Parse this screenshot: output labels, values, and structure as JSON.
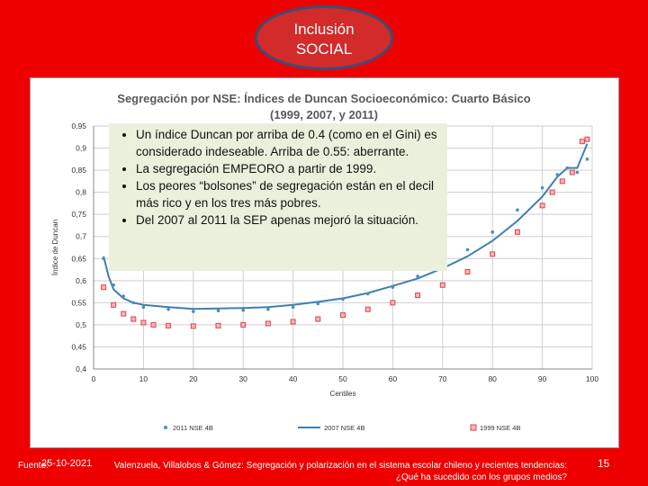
{
  "slide": {
    "badge_line1": "Inclusión",
    "badge_line2": "SOCIAL",
    "date": "25-10-2021",
    "source_prefix": "Fuente:",
    "source_line1": "Valenzuela, Villalobos & Gómez: Segregación y polarización en el sistema escolar chileno y recientes tendencias:",
    "source_line2": "¿Qué ha sucedido con los grupos medios?",
    "page_number": "15",
    "bullets": [
      "Un índice Duncan por arriba de 0.4 (como en el Gini) es considerado indeseable. Arriba de 0.55: aberrante.",
      "La segregación EMPEORO a partir de 1999.",
      "Los peores “bolsones” de segregación están en el decil más rico y en los tres más pobres.",
      "Del 2007 al 2011 la SEP apenas mejoró la situación."
    ]
  },
  "chart_data": {
    "type": "scatter",
    "title_line1": "Segregación por NSE: Índices de Duncan Socioeconómico: Cuarto Básico",
    "title_line2": "(1999, 2007, y 2011)",
    "xlabel": "Centiles",
    "ylabel": "Índice de Duncan",
    "xlim": [
      0,
      100
    ],
    "ylim": [
      0.4,
      0.95
    ],
    "xticks": [
      "0",
      "10",
      "20",
      "30",
      "40",
      "50",
      "60",
      "70",
      "80",
      "90",
      "100"
    ],
    "yticks": [
      "0,4",
      "0,45",
      "0,5",
      "0,55",
      "0,6",
      "0,65",
      "0,7",
      "0,75",
      "0,8",
      "0,85",
      "0,9",
      "0,95"
    ],
    "grid": true,
    "legend_position": "bottom",
    "series": [
      {
        "name": "2011 NSE 4B",
        "style": "dot",
        "color": "#4a8fb8",
        "x": [
          2,
          4,
          6,
          8,
          10,
          15,
          20,
          25,
          30,
          35,
          40,
          45,
          50,
          55,
          60,
          65,
          70,
          75,
          80,
          85,
          90,
          93,
          95,
          97,
          99
        ],
        "y": [
          0.65,
          0.59,
          0.565,
          0.55,
          0.54,
          0.535,
          0.53,
          0.532,
          0.533,
          0.535,
          0.54,
          0.548,
          0.558,
          0.57,
          0.585,
          0.61,
          0.635,
          0.67,
          0.71,
          0.76,
          0.81,
          0.84,
          0.855,
          0.845,
          0.875
        ]
      },
      {
        "name": "2007 NSE 4B",
        "style": "line",
        "color": "#3f7fae",
        "x": [
          2,
          3,
          4,
          6,
          8,
          10,
          15,
          20,
          25,
          30,
          35,
          40,
          45,
          50,
          55,
          60,
          65,
          70,
          75,
          80,
          85,
          90,
          93,
          95,
          97,
          99
        ],
        "y": [
          0.655,
          0.61,
          0.58,
          0.56,
          0.55,
          0.545,
          0.54,
          0.536,
          0.537,
          0.538,
          0.54,
          0.545,
          0.552,
          0.56,
          0.572,
          0.588,
          0.605,
          0.628,
          0.655,
          0.69,
          0.735,
          0.79,
          0.835,
          0.855,
          0.855,
          0.91
        ]
      },
      {
        "name": "1999 NSE 4B",
        "style": "square",
        "color": "#d9464f",
        "x": [
          2,
          4,
          6,
          8,
          10,
          12,
          15,
          20,
          25,
          30,
          35,
          40,
          45,
          50,
          55,
          60,
          65,
          70,
          75,
          80,
          85,
          90,
          92,
          94,
          96,
          98,
          99
        ],
        "y": [
          0.585,
          0.545,
          0.525,
          0.513,
          0.505,
          0.5,
          0.498,
          0.497,
          0.498,
          0.5,
          0.503,
          0.507,
          0.513,
          0.522,
          0.535,
          0.55,
          0.567,
          0.59,
          0.62,
          0.66,
          0.71,
          0.77,
          0.8,
          0.825,
          0.845,
          0.915,
          0.92
        ]
      }
    ]
  }
}
